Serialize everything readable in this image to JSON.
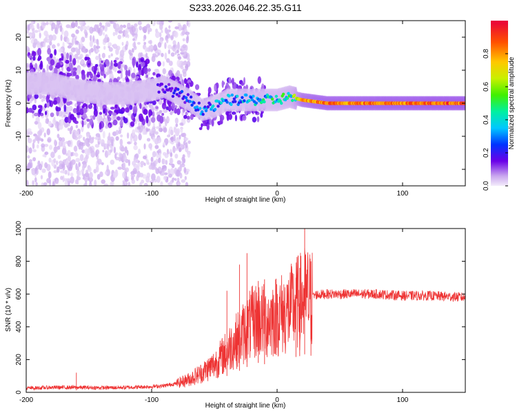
{
  "title": "S233.2026.046.22.35.G11",
  "chart_data": [
    {
      "type": "heatmap",
      "title": "S233.2026.046.22.35.G11",
      "xlabel": "Height of straight line (km)",
      "ylabel": "Frequency (Hz)",
      "xlim": [
        -200,
        150
      ],
      "ylim": [
        -25,
        25
      ],
      "xticks": [
        -200,
        -100,
        0,
        100
      ],
      "yticks": [
        -20,
        -10,
        0,
        10,
        20
      ],
      "colorbar": {
        "label": "Normalized spectral amplitude",
        "range": [
          0,
          1
        ],
        "ticks": [
          0.0,
          0.2,
          0.4,
          0.6,
          0.8
        ],
        "colors": [
          "#f4ecfb",
          "#c9a6ee",
          "#6a00e8",
          "#0033ff",
          "#00c8ff",
          "#00f0a0",
          "#40f000",
          "#c8f000",
          "#ffc800",
          "#ff5000",
          "#e8003c"
        ]
      },
      "ridge": {
        "x": [
          -200,
          -180,
          -160,
          -140,
          -120,
          -100,
          -90,
          -80,
          -70,
          -60,
          -50,
          -40,
          -30,
          -20,
          -10,
          0,
          10,
          20,
          30,
          40,
          60,
          80,
          100,
          120,
          150
        ],
        "y": [
          6,
          6,
          4,
          3,
          3,
          4,
          5,
          3,
          1,
          -2,
          -1,
          1,
          1,
          1,
          1,
          1,
          2,
          1,
          0.5,
          0,
          0,
          0,
          0,
          0,
          0
        ],
        "amplitude": [
          0.15,
          0.18,
          0.16,
          0.15,
          0.15,
          0.18,
          0.22,
          0.25,
          0.3,
          0.35,
          0.38,
          0.4,
          0.42,
          0.45,
          0.48,
          0.5,
          0.55,
          0.85,
          0.9,
          0.92,
          0.92,
          0.93,
          0.93,
          0.95,
          0.95
        ]
      }
    },
    {
      "type": "line",
      "xlabel": "Height of straight line (km)",
      "ylabel": "SNR (10 * v/v)",
      "xlim": [
        -200,
        150
      ],
      "ylim": [
        0,
        1000
      ],
      "xticks": [
        -200,
        -100,
        0,
        100
      ],
      "yticks": [
        0,
        200,
        400,
        600,
        800,
        1000
      ],
      "color": "#ee3333",
      "series": [
        {
          "x": [
            -200,
            -180,
            -160,
            -140,
            -120,
            -100,
            -90,
            -80,
            -70,
            -60,
            -50,
            -40,
            -35,
            -30,
            -25,
            -20,
            -15,
            -10,
            -5,
            0,
            5,
            10,
            15,
            20,
            22,
            25,
            27,
            30,
            40,
            60,
            80,
            100,
            120,
            150
          ],
          "y": [
            25,
            30,
            30,
            28,
            30,
            35,
            40,
            55,
            80,
            120,
            170,
            250,
            300,
            330,
            380,
            420,
            450,
            430,
            450,
            470,
            480,
            500,
            540,
            560,
            580,
            580,
            560,
            595,
            600,
            600,
            600,
            590,
            590,
            580
          ]
        }
      ],
      "peaks": [
        {
          "x": -160,
          "y": 120
        },
        {
          "x": -40,
          "y": 620
        },
        {
          "x": -30,
          "y": 780
        },
        {
          "x": -24,
          "y": 850
        },
        {
          "x": -15,
          "y": 680
        },
        {
          "x": -10,
          "y": 690
        },
        {
          "x": 15,
          "y": 700
        },
        {
          "x": 18,
          "y": 760
        },
        {
          "x": 22,
          "y": 1000
        },
        {
          "x": 27,
          "y": 800
        }
      ]
    }
  ]
}
